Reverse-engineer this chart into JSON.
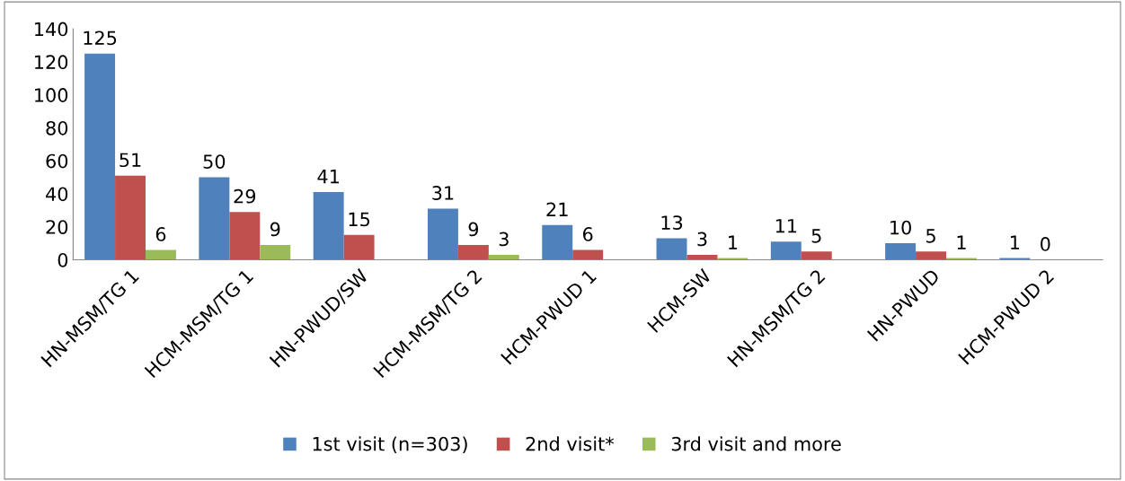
{
  "chart_data": {
    "type": "bar",
    "categories": [
      "HN-MSM/TG 1",
      "HCM-MSM/TG 1",
      "HN-PWUD/SW",
      "HCM-MSM/TG 2",
      "HCM-PWUD 1",
      "HCM-SW",
      "HN-MSM/TG 2",
      "HN-PWUD",
      "HCM-PWUD 2"
    ],
    "series": [
      {
        "name": "1st visit (n=303)",
        "color": "#4f81bd",
        "values": [
          125,
          50,
          41,
          31,
          21,
          13,
          11,
          10,
          1
        ]
      },
      {
        "name": "2nd visit*",
        "color": "#c0504d",
        "values": [
          51,
          29,
          15,
          9,
          6,
          3,
          5,
          5,
          0
        ]
      },
      {
        "name": "3rd visit and more",
        "color": "#9bbb59",
        "values": [
          6,
          9,
          null,
          3,
          null,
          1,
          null,
          1,
          null
        ]
      }
    ],
    "ylim": [
      0,
      140
    ],
    "yticks": [
      0,
      20,
      40,
      60,
      80,
      100,
      120,
      140
    ],
    "data_labels": true,
    "legend": "bottom",
    "grid": false
  }
}
